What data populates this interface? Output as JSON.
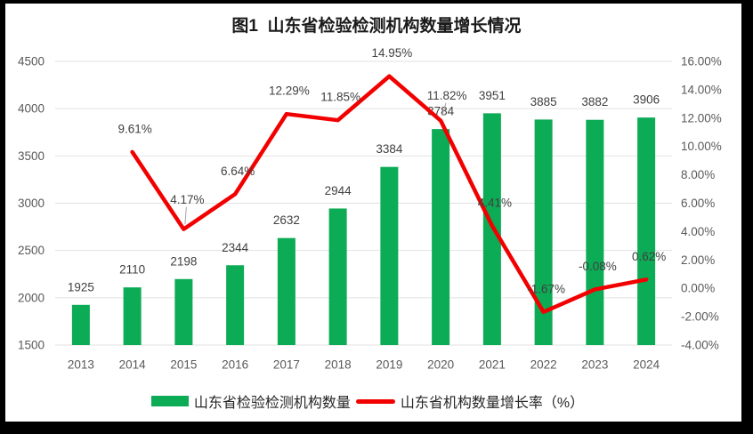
{
  "chart_data": {
    "type": "combo_bar_line",
    "title": "图1  山东省检验检测机构数量增长情况",
    "categories": [
      "2013",
      "2014",
      "2015",
      "2016",
      "2017",
      "2018",
      "2019",
      "2020",
      "2021",
      "2022",
      "2023",
      "2024"
    ],
    "series": [
      {
        "name": "山东省检验检测机构数量",
        "type": "bar",
        "axis": "left",
        "color": "#0cab55",
        "values": [
          1925,
          2110,
          2198,
          2344,
          2632,
          2944,
          3384,
          3784,
          3951,
          3885,
          3882,
          3906
        ],
        "value_labels": [
          "1925",
          "2110",
          "2198",
          "2344",
          "2632",
          "2944",
          "3384",
          "3784",
          "3951",
          "3885",
          "3882",
          "3906"
        ]
      },
      {
        "name": "山东省机构数量增长率（%）",
        "type": "line",
        "axis": "right",
        "color": "#f20000",
        "values": [
          null,
          9.61,
          4.17,
          6.64,
          12.29,
          11.85,
          14.95,
          11.82,
          4.41,
          -1.67,
          -0.08,
          0.62
        ],
        "value_labels": [
          null,
          "9.61%",
          "4.17%",
          "6.64%",
          "12.29%",
          "11.85%",
          "14.95%",
          "11.82%",
          "4.41%",
          "-1.67%",
          "-0.08%",
          "0.62%"
        ]
      }
    ],
    "left_axis": {
      "min": 1500,
      "max": 4500,
      "step": 500,
      "ticks": [
        "4500",
        "4000",
        "3500",
        "3000",
        "2500",
        "2000",
        "1500"
      ]
    },
    "right_axis": {
      "min": -4,
      "max": 16,
      "step": 2,
      "ticks": [
        "16.00%",
        "14.00%",
        "12.00%",
        "10.00%",
        "8.00%",
        "6.00%",
        "4.00%",
        "2.00%",
        "0.00%",
        "-2.00%",
        "-4.00%"
      ]
    },
    "legend": [
      "山东省检验检测机构数量",
      "山东省机构数量增长率（%）"
    ],
    "grid": true,
    "legend_position": "bottom",
    "colors": {
      "grid": "#e2e2e2",
      "axis_text": "#595959",
      "data_label": "#404040",
      "leader_line": "#a6a6a6",
      "background": "#ffffff",
      "frame": "#000000"
    }
  }
}
